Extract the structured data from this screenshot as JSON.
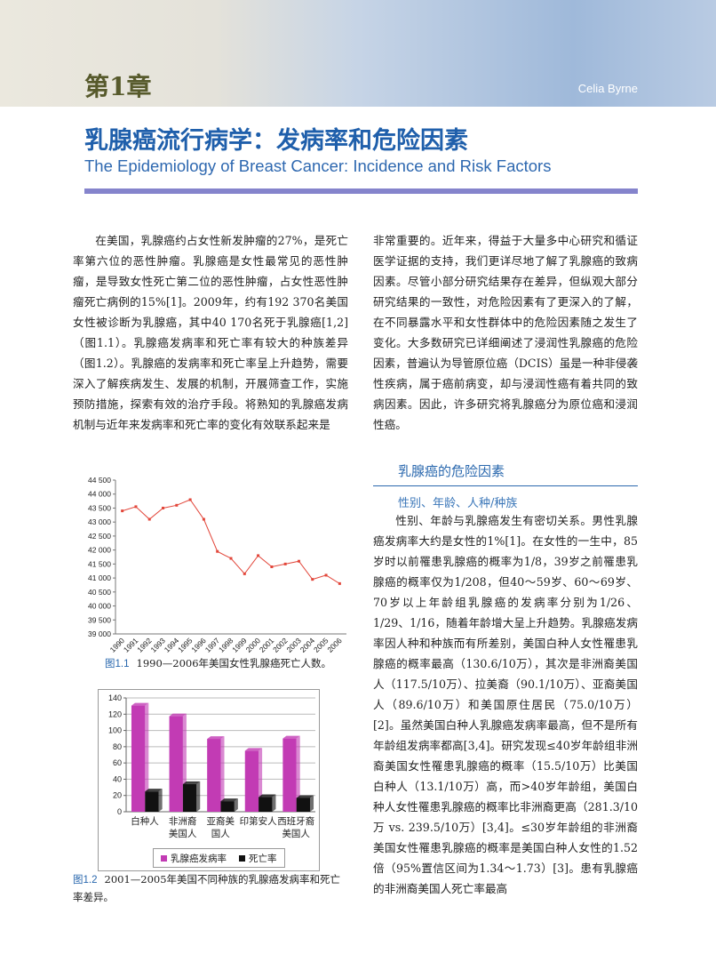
{
  "header": {
    "chapter": "第1章",
    "author": "Celia Byrne"
  },
  "title": "乳腺癌流行病学：发病率和危险因素",
  "subtitle": "The Epidemiology of Breast Cancer: Incidence and Risk Factors",
  "body": {
    "left_paragraph": "在美国，乳腺癌约占女性新发肿瘤的27%，是死亡率第六位的恶性肿瘤。乳腺癌是女性最常见的恶性肿瘤，是导致女性死亡第二位的恶性肿瘤，占女性恶性肿瘤死亡病例的15%[1]。2009年，约有192 370名美国女性被诊断为乳腺癌，其中40 170名死于乳腺癌[1,2]（图1.1）。乳腺癌发病率和死亡率有较大的种族差异（图1.2）。乳腺癌的发病率和死亡率呈上升趋势，需要深入了解疾病发生、发展的机制，开展筛查工作，实施预防措施，探索有效的治疗手段。将熟知的乳腺癌发病机制与近年来发病率和死亡率的变化有效联系起来是",
    "right_paragraph": "非常重要的。近年来，得益于大量多中心研究和循证医学证据的支持，我们更详尽地了解了乳腺癌的致病因素。尽管小部分研究结果存在差异，但纵观大部分研究结果的一致性，对危险因素有了更深入的了解，在不同暴露水平和女性群体中的危险因素随之发生了变化。大多数研究已详细阐述了浸润性乳腺癌的危险因素，普遍认为导管原位癌（DCIS）虽是一种非侵袭性疾病，属于癌前病变，却与浸润性癌有着共同的致病因素。因此，许多研究将乳腺癌分为原位癌和浸润性癌。",
    "section_heading": "乳腺癌的危险因素",
    "subsection_heading": "性别、年龄、人种/种族",
    "section_paragraph": "性别、年龄与乳腺癌发生有密切关系。男性乳腺癌发病率大约是女性的1%[1]。在女性的一生中，85岁时以前罹患乳腺癌的概率为1/8，39岁之前罹患乳腺癌的概率仅为1/208，但40～59岁、60～69岁、70岁以上年龄组乳腺癌的发病率分别为1/26、1/29、1/16，随着年龄增大呈上升趋势。乳腺癌发病率因人种和种族而有所差别，美国白种人女性罹患乳腺癌的概率最高（130.6/10万），其次是非洲裔美国人（117.5/10万）、拉美裔（90.1/10万）、亚裔美国人（89.6/10万）和美国原住居民（75.0/10万）[2]。虽然美国白种人乳腺癌发病率最高，但不是所有年龄组发病率都高[3,4]。研究发现≤40岁年龄组非洲裔美国女性罹患乳腺癌的概率（15.5/10万）比美国白种人（13.1/10万）高，而>40岁年龄组，美国白种人女性罹患乳腺癌的概率比非洲裔更高（281.3/10万 vs. 239.5/10万）[3,4]。≤30岁年龄组的非洲裔美国女性罹患乳腺癌的概率是美国白种人女性的1.52倍（95%置信区间为1.34～1.73）[3]。患有乳腺癌的非洲裔美国人死亡率最高"
  },
  "chart_data": [
    {
      "type": "line",
      "categories": [
        "1990",
        "1991",
        "1992",
        "1993",
        "1994",
        "1995",
        "1996",
        "1997",
        "1998",
        "1999",
        "2000",
        "2001",
        "2002",
        "2003",
        "2004",
        "2005",
        "2006"
      ],
      "values": [
        43400,
        43550,
        43100,
        43500,
        43600,
        43800,
        43100,
        41950,
        41700,
        41150,
        41800,
        41400,
        41500,
        41600,
        40950,
        41100,
        40800
      ],
      "color": "#e2463a",
      "ylim": [
        39000,
        44500
      ],
      "yticks": [
        {
          "value": 39000,
          "label": "39 000"
        },
        {
          "value": 39500,
          "label": "39 500"
        },
        {
          "value": 40000,
          "label": "40 000"
        },
        {
          "value": 40500,
          "label": "40 500"
        },
        {
          "value": 41000,
          "label": "41 000"
        },
        {
          "value": 41500,
          "label": "41 500"
        },
        {
          "value": 42000,
          "label": "42 000"
        },
        {
          "value": 42500,
          "label": "42 500"
        },
        {
          "value": 43000,
          "label": "43 000"
        },
        {
          "value": 43500,
          "label": "43 500"
        },
        {
          "value": 44000,
          "label": "44 000"
        },
        {
          "value": 44500,
          "label": "44 500"
        }
      ],
      "grid": false
    },
    {
      "type": "bar",
      "categories": [
        "白种人",
        "非洲裔美国人",
        "亚裔美国人",
        "印第安人",
        "西班牙裔美国人"
      ],
      "series": [
        {
          "name": "乳腺癌发病率",
          "color": "#c23bb4",
          "values": [
            130.6,
            117.5,
            89.6,
            75.0,
            90.1
          ]
        },
        {
          "name": "死亡率",
          "color": "#111111",
          "values": [
            25,
            34,
            13,
            18,
            17
          ]
        }
      ],
      "ylim": [
        0,
        140
      ],
      "yticks": [
        0,
        20,
        40,
        60,
        80,
        100,
        120,
        140
      ],
      "grid": true,
      "legend": "bottom"
    }
  ],
  "captions": [
    {
      "label": "图1.1",
      "text": "1990—2006年美国女性乳腺癌死亡人数。"
    },
    {
      "label": "图1.2",
      "text": "2001—2005年美国不同种族的乳腺癌发病率和死亡率差异。"
    }
  ]
}
